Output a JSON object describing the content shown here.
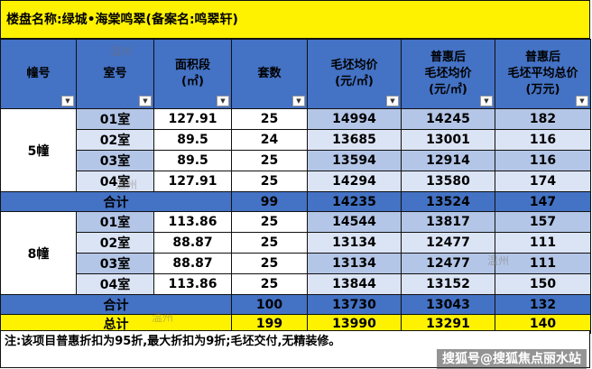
{
  "title": "楼盘名称:绿城•海棠鸣翠(备案名:鸣翠轩)",
  "headers": {
    "building": "幢号",
    "unit": "室号",
    "area_line1": "面积段",
    "area_line2": "(㎡)",
    "count": "套数",
    "price_line1": "毛坯均价",
    "price_line2": "(元/㎡)",
    "disc_line1": "普惠后",
    "disc_line2": "毛坯均价",
    "disc_line3": "(元/㎡)",
    "total_line1": "普惠后",
    "total_line2": "毛坯平均总价",
    "total_line3": "(万元)"
  },
  "buildings": [
    {
      "name": "5幢",
      "rows": [
        {
          "unit": "01室",
          "area": "127.91",
          "count": "25",
          "price": "14994",
          "disc": "14245",
          "total": "182"
        },
        {
          "unit": "02室",
          "area": "89.5",
          "count": "24",
          "price": "13685",
          "disc": "13001",
          "total": "116"
        },
        {
          "unit": "03室",
          "area": "89.5",
          "count": "25",
          "price": "13594",
          "disc": "12914",
          "total": "116"
        },
        {
          "unit": "04室",
          "area": "127.91",
          "count": "25",
          "price": "14294",
          "disc": "13580",
          "total": "174"
        }
      ],
      "subtotal": {
        "label": "合计",
        "count": "99",
        "price": "14235",
        "disc": "13524",
        "total": "147"
      }
    },
    {
      "name": "8幢",
      "rows": [
        {
          "unit": "01室",
          "area": "113.86",
          "count": "25",
          "price": "14544",
          "disc": "13817",
          "total": "157"
        },
        {
          "unit": "02室",
          "area": "88.87",
          "count": "25",
          "price": "13134",
          "disc": "12477",
          "total": "111"
        },
        {
          "unit": "03室",
          "area": "88.87",
          "count": "25",
          "price": "13134",
          "disc": "12477",
          "total": "111"
        },
        {
          "unit": "04室",
          "area": "113.86",
          "count": "25",
          "price": "13844",
          "disc": "13152",
          "total": "150"
        }
      ],
      "subtotal": {
        "label": "合计",
        "count": "100",
        "price": "13730",
        "disc": "13043",
        "total": "132"
      }
    }
  ],
  "grand_total": {
    "label": "总计",
    "count": "199",
    "price": "13990",
    "disc": "13291",
    "total": "140"
  },
  "note": "注:该项目普惠折扣为95折,最大折扣为9折;毛坯交付,无精装修。",
  "watermark": "搜狐号@搜狐焦点丽水站",
  "stamp_text": "温州",
  "colors": {
    "header": "#4472c4",
    "title": "#fff200",
    "row_light": "#b4c6e7",
    "row_pale": "#dbe4f5"
  }
}
